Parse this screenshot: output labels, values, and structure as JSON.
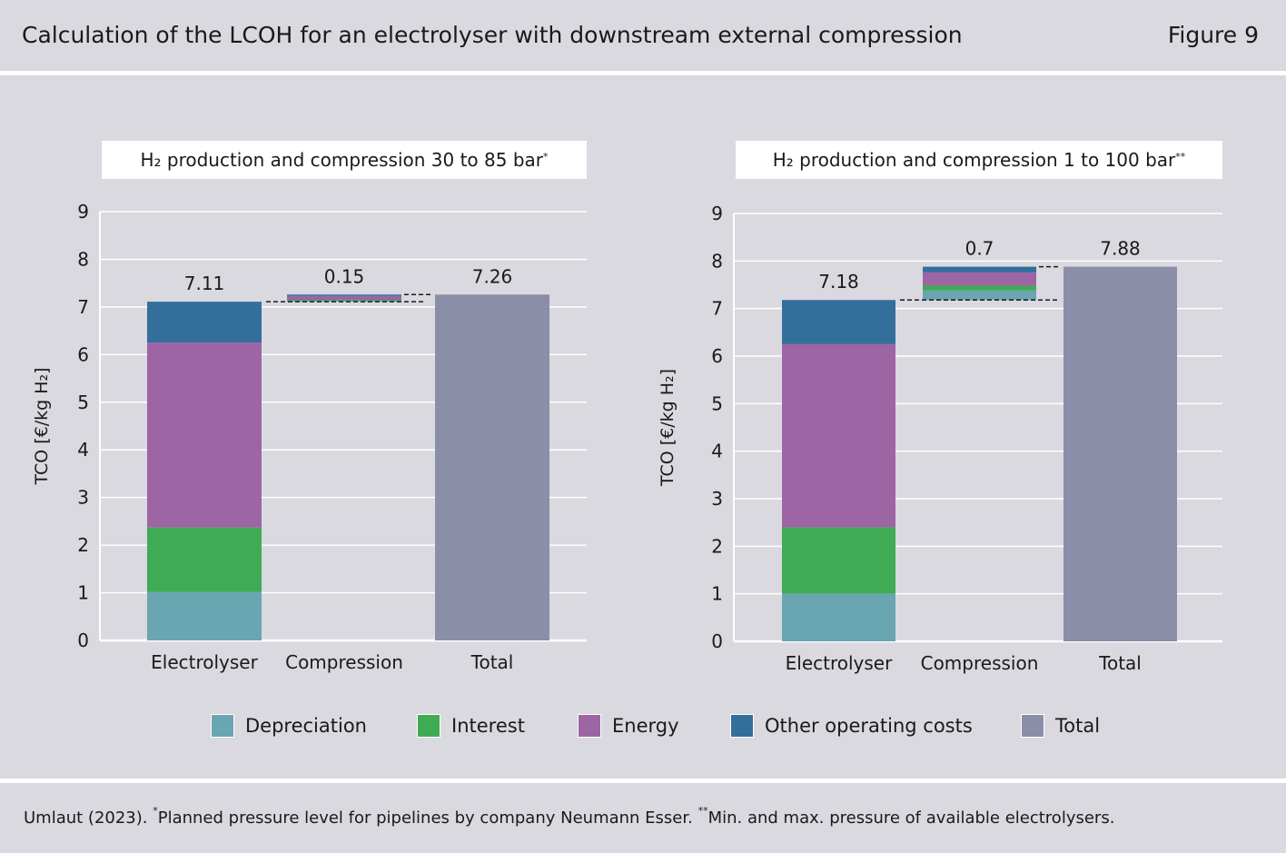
{
  "header": {
    "title": "Calculation of the LCOH for an electrolyser with downstream external compression",
    "figure_label": "Figure 9"
  },
  "colors": {
    "depreciation": "#6aa5b2",
    "interest": "#40ab55",
    "energy": "#9d65a4",
    "other": "#346f9c",
    "total": "#8a8ea8",
    "background": "#d9d9df"
  },
  "legend": {
    "items": [
      {
        "label": "Depreciation",
        "color": "#6aa5b2"
      },
      {
        "label": "Interest",
        "color": "#40ab55"
      },
      {
        "label": "Energy",
        "color": "#9d65a4"
      },
      {
        "label": "Other operating costs",
        "color": "#346f9c"
      },
      {
        "label": "Total",
        "color": "#8a8ea8"
      }
    ]
  },
  "footer": {
    "source": "Umlaut (2023). ",
    "mark1": "*",
    "note1": "Planned pressure level for pipelines by company Neumann Esser. ",
    "mark2": "**",
    "note2": "Min. and max. pressure of available electrolysers."
  },
  "chart_data": [
    {
      "type": "bar",
      "title": "H₂ production and compression 30 to 85 bar",
      "title_mark": "*",
      "ylabel": "TCO [€/kg H₂]",
      "ylim": [
        0,
        9
      ],
      "yticks": [
        0,
        1,
        2,
        3,
        4,
        5,
        6,
        7,
        8,
        9
      ],
      "categories": [
        "Electrolyser",
        "Compression",
        "Total"
      ],
      "series": [
        {
          "name": "Depreciation",
          "values": [
            1.02,
            0.02,
            null
          ]
        },
        {
          "name": "Interest",
          "values": [
            1.35,
            0.02,
            null
          ]
        },
        {
          "name": "Energy",
          "values": [
            3.88,
            0.08,
            null
          ]
        },
        {
          "name": "Other operating costs",
          "values": [
            0.86,
            0.03,
            null
          ]
        },
        {
          "name": "Total",
          "values": [
            null,
            null,
            7.26
          ]
        }
      ],
      "bases": [
        0,
        7.11,
        0
      ],
      "data_labels": [
        "7.11",
        "0.15",
        "7.26"
      ],
      "connectors": [
        7.11,
        7.26
      ]
    },
    {
      "type": "bar",
      "title": "H₂ production and compression 1 to 100 bar",
      "title_mark": "**",
      "ylabel": "TCO [€/kg H₂]",
      "ylim": [
        0,
        9
      ],
      "yticks": [
        0,
        1,
        2,
        3,
        4,
        5,
        6,
        7,
        8,
        9
      ],
      "categories": [
        "Electrolyser",
        "Compression",
        "Total"
      ],
      "series": [
        {
          "name": "Depreciation",
          "values": [
            1.0,
            0.2,
            null
          ]
        },
        {
          "name": "Interest",
          "values": [
            1.4,
            0.1,
            null
          ]
        },
        {
          "name": "Energy",
          "values": [
            3.85,
            0.28,
            null
          ]
        },
        {
          "name": "Other operating costs",
          "values": [
            0.93,
            0.12,
            null
          ]
        },
        {
          "name": "Total",
          "values": [
            null,
            null,
            7.88
          ]
        }
      ],
      "bases": [
        0,
        7.18,
        0
      ],
      "data_labels": [
        "7.18",
        "0.7",
        "7.88"
      ],
      "connectors": [
        7.18,
        7.88
      ]
    }
  ]
}
